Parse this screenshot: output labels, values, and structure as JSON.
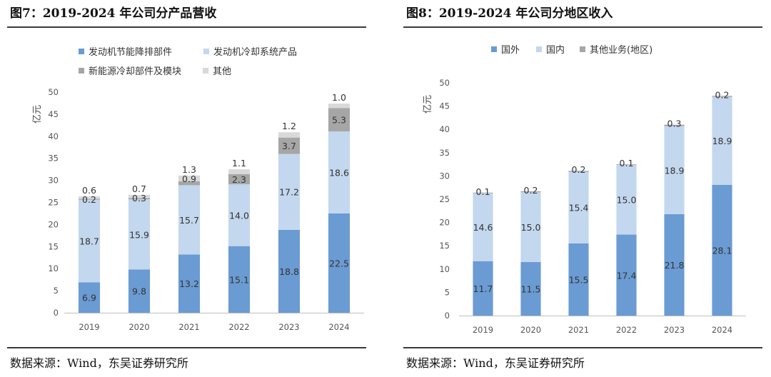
{
  "left": {
    "title": "图7：2019-2024 年公司分产品营收",
    "source": "数据来源：Wind，东吴证券研究所",
    "chart_data": {
      "type": "bar",
      "stacked": true,
      "ylabel": "亿元",
      "ylim": [
        0,
        50
      ],
      "yticks": [
        0,
        5,
        10,
        15,
        20,
        25,
        30,
        35,
        40,
        45,
        50
      ],
      "categories": [
        "2019",
        "2020",
        "2021",
        "2022",
        "2023",
        "2024"
      ],
      "legend_position": "top",
      "series": [
        {
          "name": "发动机节能降排部件",
          "color": "#6a9bd3",
          "values": [
            6.9,
            9.8,
            13.2,
            15.1,
            18.8,
            22.5
          ],
          "labels": [
            "6.9",
            "9.8",
            "13.2",
            "15.1",
            "18.8",
            "22.5"
          ]
        },
        {
          "name": "发动机冷却系统产品",
          "color": "#c3d7ee",
          "values": [
            18.7,
            15.9,
            15.7,
            14.0,
            17.2,
            18.6
          ],
          "labels": [
            "18.7",
            "15.9",
            "15.7",
            "14.0",
            "17.2",
            "18.6"
          ]
        },
        {
          "name": "新能源冷却部件及模块",
          "color": "#a6a6a6",
          "values": [
            0.2,
            0.3,
            0.9,
            2.3,
            3.7,
            5.3
          ],
          "labels": [
            "0.2",
            "0.3",
            "0.9",
            "2.3",
            "3.7",
            "5.3"
          ]
        },
        {
          "name": "其他",
          "color": "#d9d9d9",
          "values": [
            0.6,
            0.7,
            1.3,
            1.1,
            1.2,
            1.0
          ],
          "labels": [
            "0.6",
            "0.7",
            "1.3",
            "1.1",
            "1.2",
            "1.0"
          ]
        }
      ]
    }
  },
  "right": {
    "title": "图8：2019-2024 年公司分地区收入",
    "source": "数据来源：Wind，东吴证券研究所",
    "chart_data": {
      "type": "bar",
      "stacked": true,
      "ylabel": "亿元",
      "ylim": [
        0,
        50
      ],
      "yticks": [
        0,
        5,
        10,
        15,
        20,
        25,
        30,
        35,
        40,
        45,
        50
      ],
      "categories": [
        "2019",
        "2020",
        "2021",
        "2022",
        "2023",
        "2024"
      ],
      "legend_position": "top",
      "series": [
        {
          "name": "国外",
          "color": "#6a9bd3",
          "values": [
            11.7,
            11.5,
            15.5,
            17.4,
            21.8,
            28.1
          ],
          "labels": [
            "11.7",
            "11.5",
            "15.5",
            "17.4",
            "21.8",
            "28.1"
          ]
        },
        {
          "name": "国内",
          "color": "#c3d7ee",
          "values": [
            14.6,
            15.0,
            15.4,
            15.0,
            18.9,
            18.9
          ],
          "labels": [
            "14.6",
            "15.0",
            "15.4",
            "15.0",
            "18.9",
            "18.9"
          ]
        },
        {
          "name": "其他业务(地区)",
          "color": "#a6a6a6",
          "values": [
            0.1,
            0.2,
            0.2,
            0.1,
            0.3,
            0.2
          ],
          "labels": [
            "0.1",
            "0.2",
            "0.2",
            "0.1",
            "0.3",
            "0.2"
          ]
        }
      ]
    }
  }
}
